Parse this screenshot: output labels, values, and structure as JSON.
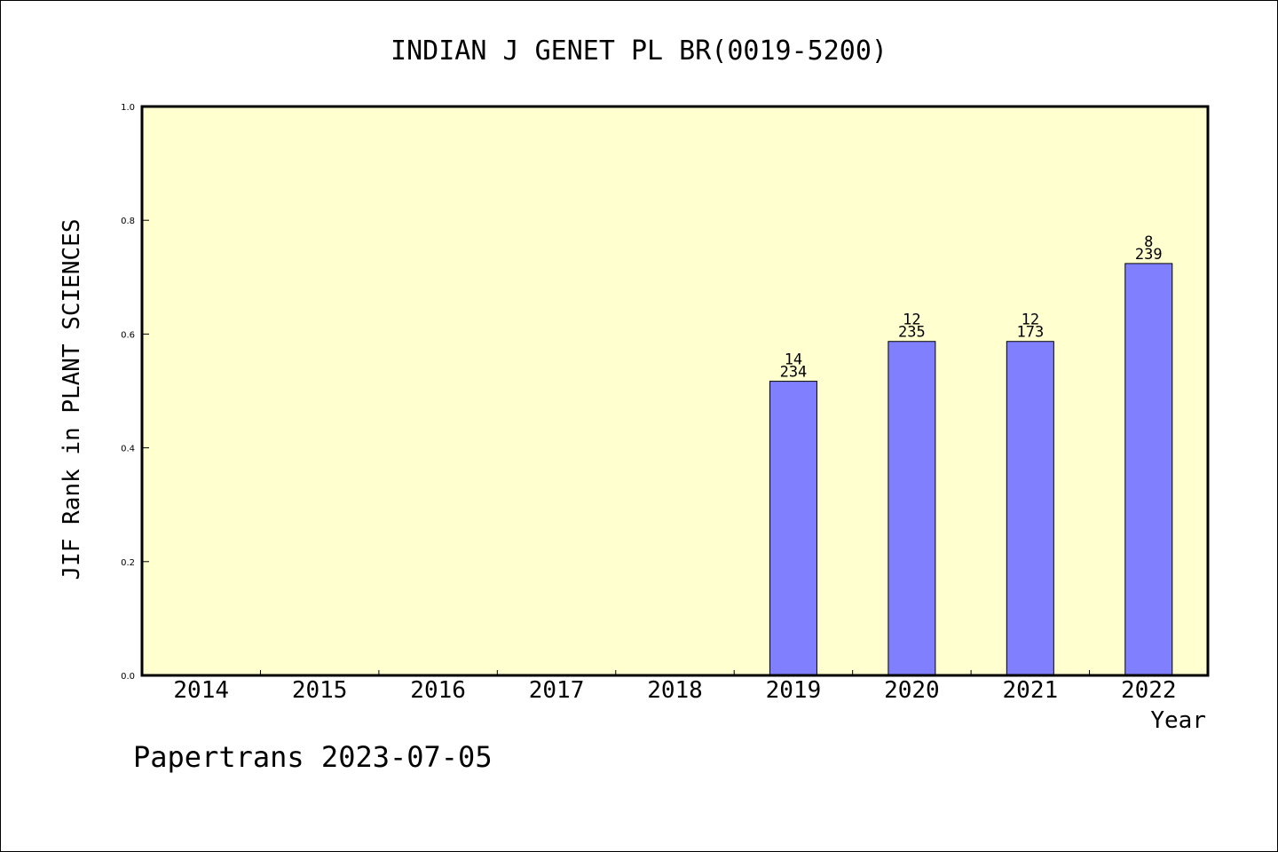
{
  "chart_data": {
    "type": "bar",
    "title": "INDIAN J GENET PL BR(0019-5200)",
    "xlabel": "Year",
    "ylabel": "JIF Rank in PLANT SCIENCES",
    "ylim": [
      0,
      1.0
    ],
    "yticks": [
      "0.0",
      "0.2",
      "0.4",
      "0.6",
      "0.8",
      "1.0"
    ],
    "categories": [
      "2014",
      "2015",
      "2016",
      "2017",
      "2018",
      "2019",
      "2020",
      "2021",
      "2022"
    ],
    "values": [
      null,
      null,
      null,
      null,
      null,
      0.517,
      0.587,
      0.587,
      0.724
    ],
    "rank_labels": [
      null,
      null,
      null,
      null,
      null,
      {
        "rank": "14",
        "total": "234"
      },
      {
        "rank": "12",
        "total": "235"
      },
      {
        "rank": "12",
        "total": "173"
      },
      {
        "rank": "8",
        "total": "239"
      }
    ],
    "grid": false,
    "colors": {
      "plot_background": "#ffffd0",
      "bar": "#8080ff",
      "axis": "#000000"
    }
  },
  "footer": "Papertrans 2023-07-05"
}
